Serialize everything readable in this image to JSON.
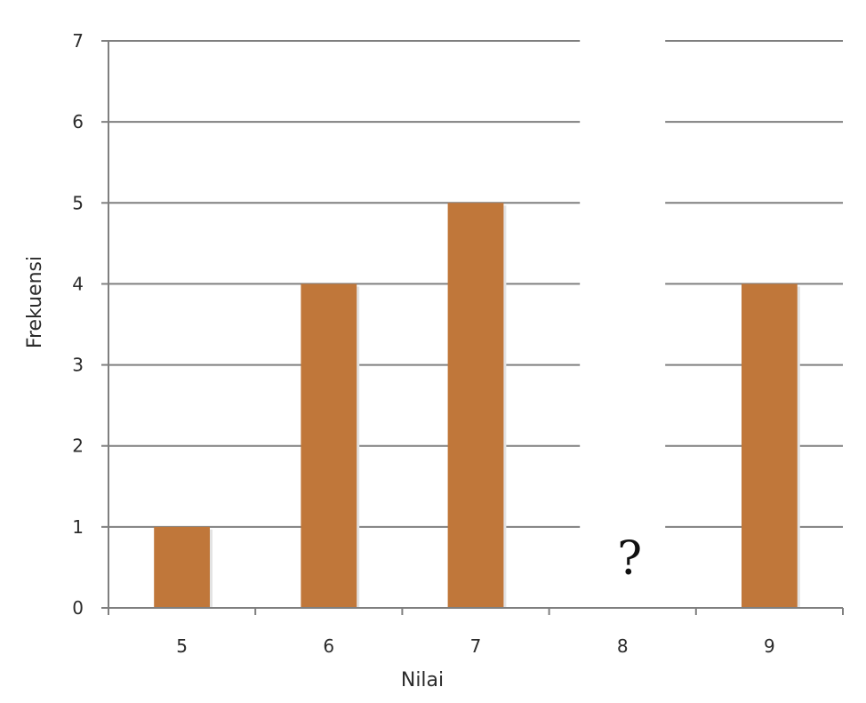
{
  "chart_data": {
    "type": "bar",
    "xlabel": "Nilai",
    "ylabel": "Frekuensi",
    "categories": [
      "5",
      "6",
      "7",
      "8",
      "9"
    ],
    "values": [
      1,
      4,
      5,
      null,
      4
    ],
    "hidden_category": "8",
    "hidden_marker": "?",
    "ylim": [
      0,
      7
    ],
    "yticks": [
      "0",
      "1",
      "2",
      "3",
      "4",
      "5",
      "6",
      "7"
    ],
    "grid": true,
    "legend": "none",
    "bar_color": "#C0773A"
  }
}
